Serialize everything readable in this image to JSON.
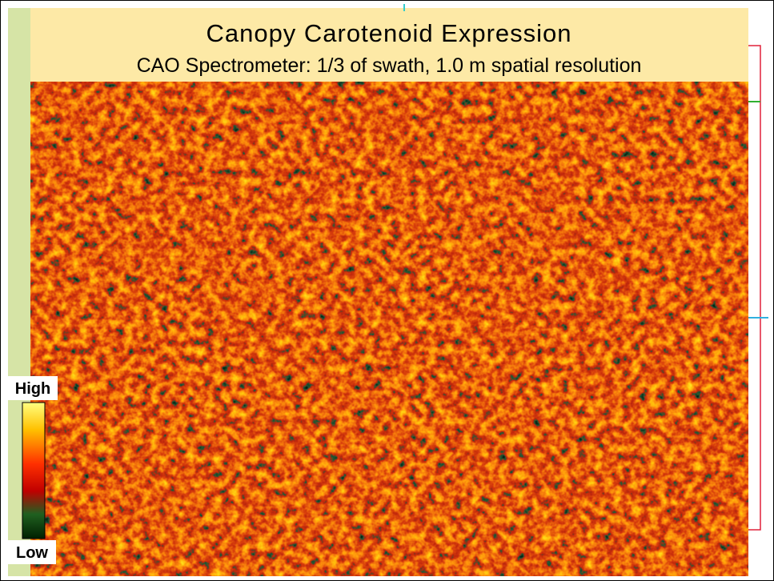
{
  "header": {
    "title": "Canopy Carotenoid Expression",
    "subtitle": "CAO Spectrometer: 1/3 of swath, 1.0 m spatial resolution"
  },
  "legend": {
    "high": "High",
    "low": "Low"
  }
}
